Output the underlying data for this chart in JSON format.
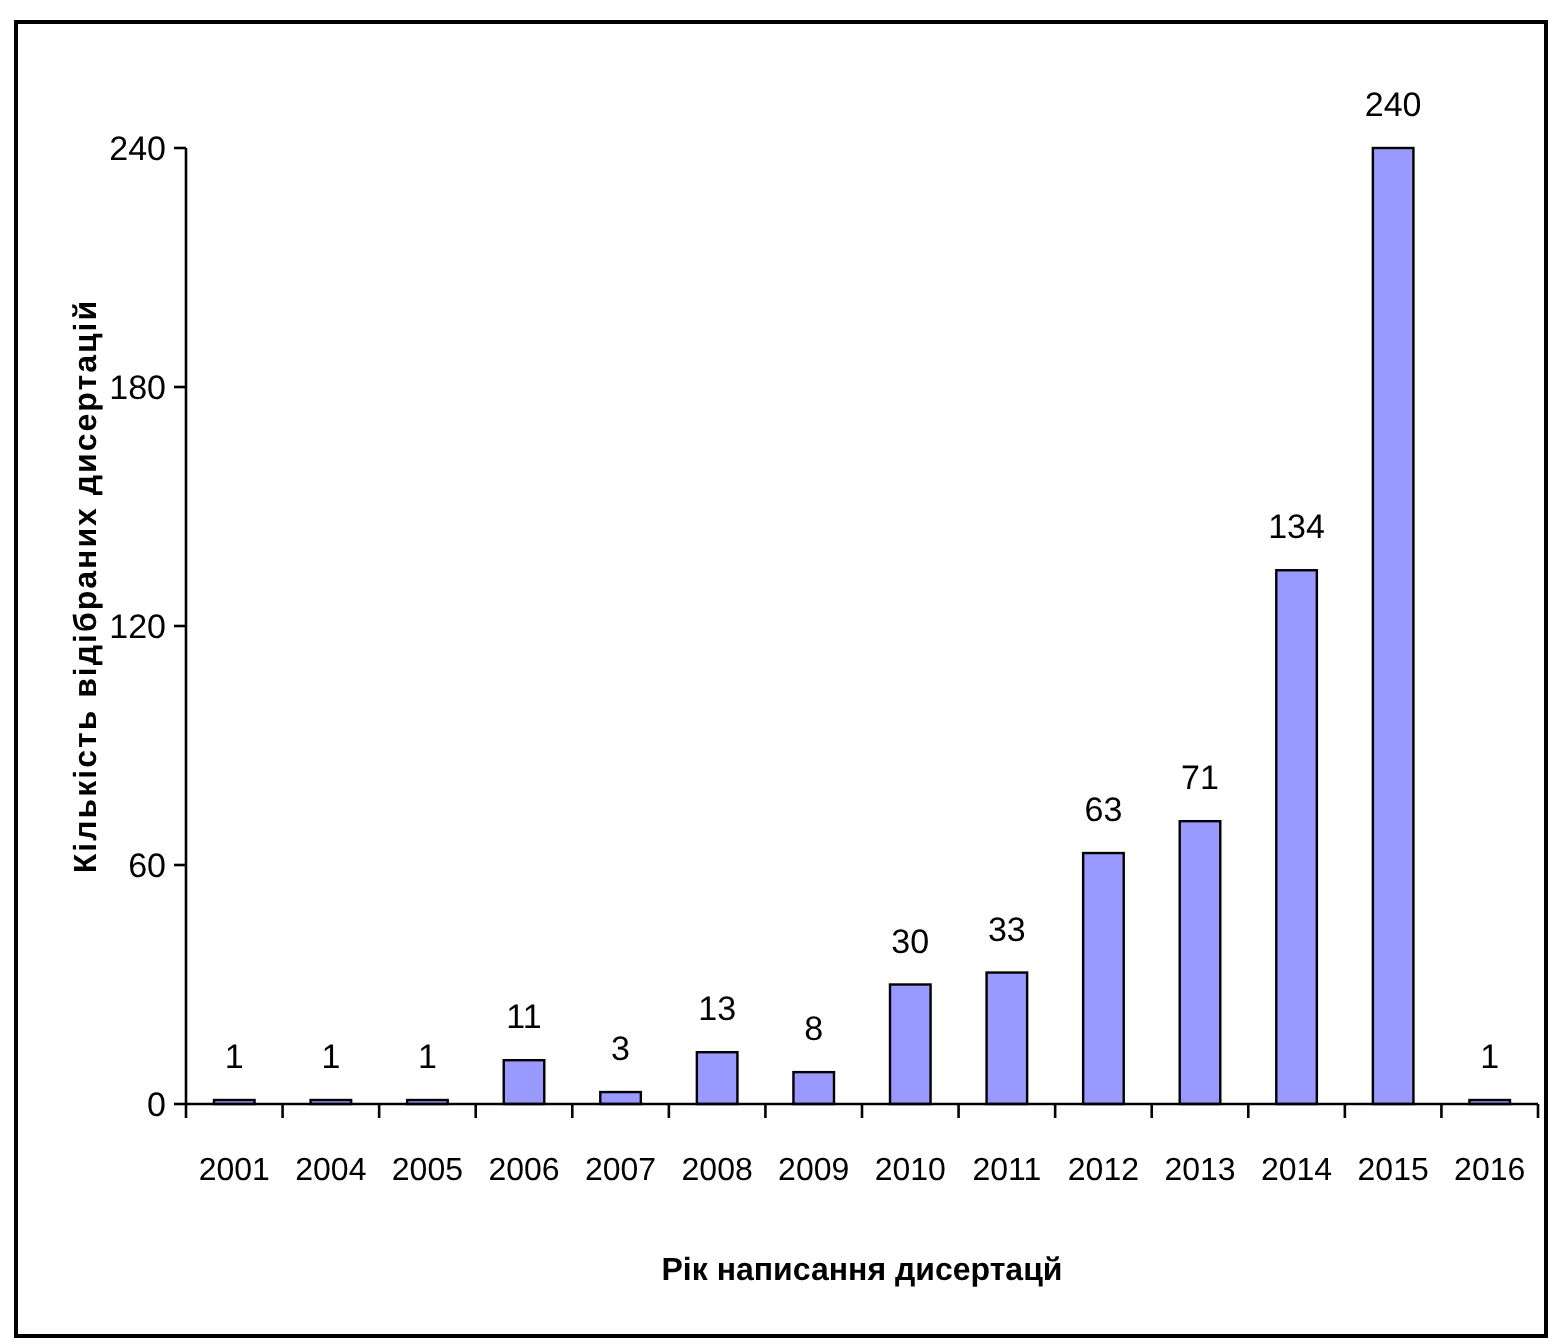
{
  "chart_data": {
    "type": "bar",
    "xlabel": "Рік написання дисертацй",
    "ylabel": "Кількість відібраних дисертацій",
    "categories": [
      "2001",
      "2004",
      "2005",
      "2006",
      "2007",
      "2008",
      "2009",
      "2010",
      "2011",
      "2012",
      "2013",
      "2014",
      "2015",
      "2016"
    ],
    "values": [
      1,
      1,
      1,
      11,
      3,
      13,
      8,
      30,
      33,
      63,
      71,
      134,
      240,
      1
    ],
    "color": "#9999ff",
    "ylim": [
      0,
      240
    ],
    "yticks": [
      0,
      60,
      120,
      180,
      240
    ],
    "grid": false,
    "data_labels": true
  }
}
